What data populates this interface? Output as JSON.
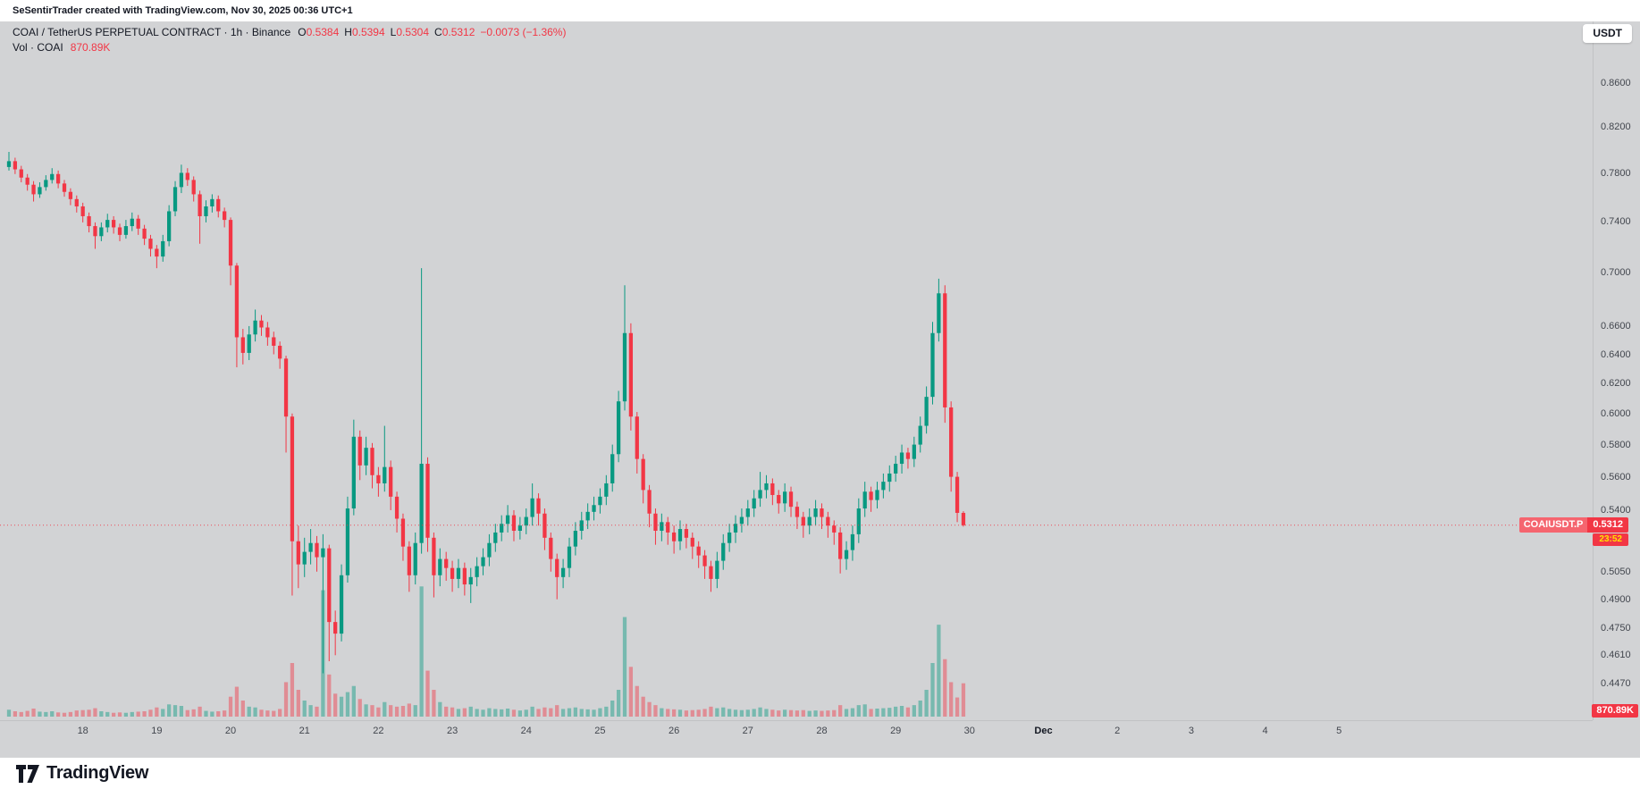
{
  "header": {
    "watermark": "SeSentirTrader created with TradingView.com, Nov 30, 2025 00:36 UTC+1"
  },
  "legend": {
    "title": "COAI / TetherUS PERPETUAL CONTRACT · 1h · Binance",
    "ohlc": [
      {
        "k": "O",
        "v": "0.5384"
      },
      {
        "k": "H",
        "v": "0.5394"
      },
      {
        "k": "L",
        "v": "0.5304"
      },
      {
        "k": "C",
        "v": "0.5312"
      }
    ],
    "change": "−0.0073 (−1.36%)",
    "vol_title": "Vol · COAI",
    "vol_value": "870.89K"
  },
  "currency_button": "USDT",
  "price_label": {
    "symbol": "COAIUSDT.P",
    "price": "0.5312",
    "countdown": "23:52"
  },
  "volume_axis_label": "870.89K",
  "footer": {
    "brand": "TradingView"
  },
  "colors": {
    "up": "#089981",
    "down": "#f23645",
    "background": "#d2d3d5",
    "axis_text": "#42464e",
    "accent_red": "#f23645",
    "countdown_yellow": "#ffe100"
  },
  "chart_data": {
    "type": "candlestick",
    "title": "COAI / TetherUS PERPETUAL CONTRACT · 1h · Binance",
    "symbol": "COAIUSDT.P",
    "exchange": "Binance",
    "interval": "1h",
    "quote_currency": "USDT",
    "last": {
      "open": 0.5384,
      "high": 0.5394,
      "low": 0.5304,
      "close": 0.5312,
      "change": -0.0073,
      "change_pct": -1.36,
      "volume_label": "870.89K"
    },
    "price_axis": {
      "scale": "log",
      "top": 0.92,
      "bottom": 0.432,
      "labels": [
        "0.8600",
        "0.8200",
        "0.7800",
        "0.7400",
        "0.7000",
        "0.6600",
        "0.6400",
        "0.6200",
        "0.6000",
        "0.5800",
        "0.5600",
        "0.5400",
        "0.5050",
        "0.4900",
        "0.4750",
        "0.4610",
        "0.4470"
      ]
    },
    "time_axis": {
      "start_label_day": "Nov 17",
      "labels": [
        {
          "text": "18",
          "day": 1
        },
        {
          "text": "19",
          "day": 2
        },
        {
          "text": "20",
          "day": 3
        },
        {
          "text": "21",
          "day": 4
        },
        {
          "text": "22",
          "day": 5
        },
        {
          "text": "23",
          "day": 6
        },
        {
          "text": "24",
          "day": 7
        },
        {
          "text": "25",
          "day": 8
        },
        {
          "text": "26",
          "day": 9
        },
        {
          "text": "27",
          "day": 10
        },
        {
          "text": "28",
          "day": 11
        },
        {
          "text": "29",
          "day": 12
        },
        {
          "text": "30",
          "day": 13
        },
        {
          "text": "Dec",
          "day": 14,
          "month": true
        },
        {
          "text": "2",
          "day": 15
        },
        {
          "text": "3",
          "day": 16
        },
        {
          "text": "4",
          "day": 17
        },
        {
          "text": "5",
          "day": 18
        }
      ]
    },
    "hours_per_candle": 2,
    "volume_max_k": 3500,
    "candles": [
      [
        0.785,
        0.798,
        0.782,
        0.79,
        180
      ],
      [
        0.79,
        0.793,
        0.779,
        0.783,
        140
      ],
      [
        0.783,
        0.786,
        0.772,
        0.776,
        120
      ],
      [
        0.776,
        0.779,
        0.765,
        0.77,
        150
      ],
      [
        0.77,
        0.773,
        0.756,
        0.762,
        210
      ],
      [
        0.762,
        0.772,
        0.759,
        0.768,
        130
      ],
      [
        0.768,
        0.778,
        0.765,
        0.774,
        120
      ],
      [
        0.774,
        0.784,
        0.771,
        0.779,
        140
      ],
      [
        0.779,
        0.782,
        0.767,
        0.771,
        110
      ],
      [
        0.771,
        0.774,
        0.76,
        0.764,
        100
      ],
      [
        0.764,
        0.767,
        0.753,
        0.758,
        120
      ],
      [
        0.758,
        0.761,
        0.747,
        0.752,
        160
      ],
      [
        0.752,
        0.755,
        0.739,
        0.744,
        170
      ],
      [
        0.744,
        0.747,
        0.731,
        0.736,
        180
      ],
      [
        0.736,
        0.739,
        0.718,
        0.728,
        220
      ],
      [
        0.728,
        0.739,
        0.724,
        0.735,
        140
      ],
      [
        0.735,
        0.746,
        0.731,
        0.741,
        120
      ],
      [
        0.741,
        0.744,
        0.73,
        0.735,
        100
      ],
      [
        0.735,
        0.738,
        0.724,
        0.729,
        110
      ],
      [
        0.729,
        0.741,
        0.726,
        0.736,
        100
      ],
      [
        0.736,
        0.747,
        0.732,
        0.742,
        120
      ],
      [
        0.742,
        0.745,
        0.729,
        0.734,
        130
      ],
      [
        0.734,
        0.737,
        0.721,
        0.726,
        140
      ],
      [
        0.726,
        0.729,
        0.712,
        0.718,
        180
      ],
      [
        0.718,
        0.721,
        0.703,
        0.712,
        240
      ],
      [
        0.712,
        0.729,
        0.708,
        0.724,
        200
      ],
      [
        0.724,
        0.753,
        0.72,
        0.748,
        320
      ],
      [
        0.748,
        0.773,
        0.744,
        0.768,
        300
      ],
      [
        0.768,
        0.787,
        0.763,
        0.78,
        280
      ],
      [
        0.78,
        0.784,
        0.769,
        0.774,
        170
      ],
      [
        0.774,
        0.777,
        0.756,
        0.762,
        190
      ],
      [
        0.762,
        0.765,
        0.722,
        0.744,
        260
      ],
      [
        0.744,
        0.757,
        0.739,
        0.752,
        150
      ],
      [
        0.752,
        0.762,
        0.747,
        0.758,
        130
      ],
      [
        0.758,
        0.761,
        0.743,
        0.748,
        140
      ],
      [
        0.748,
        0.751,
        0.735,
        0.741,
        160
      ],
      [
        0.741,
        0.743,
        0.69,
        0.705,
        520
      ],
      [
        0.705,
        0.707,
        0.631,
        0.652,
        780
      ],
      [
        0.652,
        0.658,
        0.633,
        0.641,
        420
      ],
      [
        0.641,
        0.66,
        0.636,
        0.654,
        260
      ],
      [
        0.654,
        0.672,
        0.649,
        0.664,
        240
      ],
      [
        0.664,
        0.668,
        0.653,
        0.659,
        180
      ],
      [
        0.659,
        0.663,
        0.646,
        0.652,
        160
      ],
      [
        0.652,
        0.656,
        0.64,
        0.646,
        150
      ],
      [
        0.646,
        0.649,
        0.63,
        0.637,
        200
      ],
      [
        0.637,
        0.639,
        0.575,
        0.598,
        900
      ],
      [
        0.598,
        0.6,
        0.492,
        0.522,
        1400
      ],
      [
        0.522,
        0.531,
        0.496,
        0.509,
        700
      ],
      [
        0.509,
        0.524,
        0.502,
        0.516,
        420
      ],
      [
        0.516,
        0.529,
        0.509,
        0.521,
        300
      ],
      [
        0.521,
        0.525,
        0.505,
        0.513,
        260
      ],
      [
        0.513,
        0.526,
        0.452,
        0.518,
        3300
      ],
      [
        0.518,
        0.52,
        0.458,
        0.478,
        1100
      ],
      [
        0.478,
        0.484,
        0.461,
        0.472,
        600
      ],
      [
        0.472,
        0.509,
        0.468,
        0.503,
        520
      ],
      [
        0.503,
        0.548,
        0.499,
        0.541,
        640
      ],
      [
        0.541,
        0.596,
        0.537,
        0.585,
        800
      ],
      [
        0.585,
        0.589,
        0.558,
        0.567,
        460
      ],
      [
        0.567,
        0.585,
        0.561,
        0.578,
        320
      ],
      [
        0.578,
        0.581,
        0.553,
        0.561,
        300
      ],
      [
        0.561,
        0.566,
        0.548,
        0.556,
        240
      ],
      [
        0.556,
        0.592,
        0.551,
        0.566,
        380
      ],
      [
        0.566,
        0.57,
        0.54,
        0.548,
        300
      ],
      [
        0.548,
        0.551,
        0.527,
        0.535,
        260
      ],
      [
        0.535,
        0.538,
        0.511,
        0.519,
        280
      ],
      [
        0.519,
        0.522,
        0.494,
        0.503,
        340
      ],
      [
        0.503,
        0.527,
        0.498,
        0.521,
        300
      ],
      [
        0.521,
        0.703,
        0.515,
        0.568,
        3400
      ],
      [
        0.568,
        0.572,
        0.516,
        0.524,
        1200
      ],
      [
        0.524,
        0.527,
        0.491,
        0.503,
        700
      ],
      [
        0.503,
        0.518,
        0.497,
        0.512,
        380
      ],
      [
        0.512,
        0.516,
        0.5,
        0.507,
        260
      ],
      [
        0.507,
        0.511,
        0.494,
        0.501,
        240
      ],
      [
        0.501,
        0.512,
        0.496,
        0.507,
        200
      ],
      [
        0.507,
        0.51,
        0.492,
        0.498,
        220
      ],
      [
        0.498,
        0.507,
        0.488,
        0.502,
        260
      ],
      [
        0.502,
        0.513,
        0.497,
        0.508,
        200
      ],
      [
        0.508,
        0.518,
        0.503,
        0.513,
        180
      ],
      [
        0.513,
        0.526,
        0.508,
        0.521,
        220
      ],
      [
        0.521,
        0.532,
        0.516,
        0.527,
        200
      ],
      [
        0.527,
        0.537,
        0.522,
        0.532,
        190
      ],
      [
        0.532,
        0.543,
        0.527,
        0.537,
        210
      ],
      [
        0.537,
        0.54,
        0.522,
        0.528,
        180
      ],
      [
        0.528,
        0.536,
        0.523,
        0.531,
        160
      ],
      [
        0.531,
        0.541,
        0.526,
        0.536,
        180
      ],
      [
        0.536,
        0.556,
        0.531,
        0.547,
        260
      ],
      [
        0.547,
        0.55,
        0.531,
        0.538,
        200
      ],
      [
        0.538,
        0.541,
        0.517,
        0.524,
        240
      ],
      [
        0.524,
        0.527,
        0.505,
        0.512,
        220
      ],
      [
        0.512,
        0.515,
        0.49,
        0.502,
        300
      ],
      [
        0.502,
        0.512,
        0.496,
        0.507,
        200
      ],
      [
        0.507,
        0.524,
        0.502,
        0.519,
        220
      ],
      [
        0.519,
        0.533,
        0.514,
        0.528,
        240
      ],
      [
        0.528,
        0.539,
        0.523,
        0.534,
        200
      ],
      [
        0.534,
        0.544,
        0.529,
        0.539,
        190
      ],
      [
        0.539,
        0.548,
        0.534,
        0.543,
        180
      ],
      [
        0.543,
        0.553,
        0.538,
        0.548,
        220
      ],
      [
        0.548,
        0.561,
        0.543,
        0.556,
        260
      ],
      [
        0.556,
        0.58,
        0.551,
        0.574,
        420
      ],
      [
        0.574,
        0.615,
        0.569,
        0.608,
        700
      ],
      [
        0.608,
        0.69,
        0.602,
        0.655,
        2600
      ],
      [
        0.655,
        0.662,
        0.589,
        0.598,
        1300
      ],
      [
        0.598,
        0.601,
        0.562,
        0.571,
        800
      ],
      [
        0.571,
        0.574,
        0.544,
        0.552,
        520
      ],
      [
        0.552,
        0.555,
        0.53,
        0.538,
        380
      ],
      [
        0.538,
        0.541,
        0.52,
        0.528,
        300
      ],
      [
        0.528,
        0.538,
        0.522,
        0.533,
        220
      ],
      [
        0.533,
        0.536,
        0.52,
        0.527,
        200
      ],
      [
        0.527,
        0.531,
        0.515,
        0.522,
        190
      ],
      [
        0.522,
        0.534,
        0.517,
        0.529,
        180
      ],
      [
        0.529,
        0.532,
        0.518,
        0.524,
        160
      ],
      [
        0.524,
        0.527,
        0.512,
        0.519,
        170
      ],
      [
        0.519,
        0.522,
        0.507,
        0.514,
        180
      ],
      [
        0.514,
        0.517,
        0.501,
        0.508,
        200
      ],
      [
        0.508,
        0.511,
        0.494,
        0.501,
        260
      ],
      [
        0.501,
        0.516,
        0.496,
        0.511,
        220
      ],
      [
        0.511,
        0.526,
        0.506,
        0.521,
        240
      ],
      [
        0.521,
        0.532,
        0.516,
        0.527,
        200
      ],
      [
        0.527,
        0.537,
        0.521,
        0.532,
        180
      ],
      [
        0.532,
        0.541,
        0.527,
        0.536,
        170
      ],
      [
        0.536,
        0.546,
        0.531,
        0.541,
        180
      ],
      [
        0.541,
        0.552,
        0.536,
        0.547,
        200
      ],
      [
        0.547,
        0.563,
        0.542,
        0.552,
        240
      ],
      [
        0.552,
        0.561,
        0.547,
        0.556,
        200
      ],
      [
        0.556,
        0.559,
        0.543,
        0.549,
        180
      ],
      [
        0.549,
        0.552,
        0.538,
        0.544,
        160
      ],
      [
        0.544,
        0.556,
        0.539,
        0.551,
        180
      ],
      [
        0.551,
        0.554,
        0.536,
        0.542,
        170
      ],
      [
        0.542,
        0.545,
        0.529,
        0.536,
        160
      ],
      [
        0.536,
        0.539,
        0.524,
        0.531,
        170
      ],
      [
        0.531,
        0.541,
        0.526,
        0.536,
        150
      ],
      [
        0.536,
        0.546,
        0.531,
        0.541,
        160
      ],
      [
        0.541,
        0.544,
        0.529,
        0.536,
        150
      ],
      [
        0.536,
        0.539,
        0.524,
        0.531,
        160
      ],
      [
        0.531,
        0.534,
        0.52,
        0.527,
        170
      ],
      [
        0.527,
        0.53,
        0.504,
        0.512,
        300
      ],
      [
        0.512,
        0.522,
        0.506,
        0.517,
        200
      ],
      [
        0.517,
        0.531,
        0.511,
        0.526,
        220
      ],
      [
        0.526,
        0.547,
        0.521,
        0.541,
        300
      ],
      [
        0.541,
        0.557,
        0.536,
        0.551,
        320
      ],
      [
        0.551,
        0.554,
        0.539,
        0.546,
        200
      ],
      [
        0.546,
        0.557,
        0.541,
        0.552,
        210
      ],
      [
        0.552,
        0.562,
        0.547,
        0.557,
        220
      ],
      [
        0.557,
        0.567,
        0.551,
        0.562,
        230
      ],
      [
        0.562,
        0.573,
        0.557,
        0.568,
        260
      ],
      [
        0.568,
        0.58,
        0.562,
        0.575,
        280
      ],
      [
        0.575,
        0.578,
        0.565,
        0.571,
        240
      ],
      [
        0.571,
        0.585,
        0.566,
        0.58,
        300
      ],
      [
        0.58,
        0.598,
        0.575,
        0.592,
        420
      ],
      [
        0.592,
        0.618,
        0.587,
        0.611,
        700
      ],
      [
        0.611,
        0.663,
        0.606,
        0.655,
        1400
      ],
      [
        0.655,
        0.695,
        0.649,
        0.684,
        2400
      ],
      [
        0.684,
        0.69,
        0.594,
        0.604,
        1500
      ],
      [
        0.604,
        0.608,
        0.551,
        0.56,
        900
      ],
      [
        0.56,
        0.563,
        0.533,
        0.5384,
        500
      ],
      [
        0.5384,
        0.5394,
        0.5304,
        0.5312,
        870.89
      ]
    ]
  }
}
